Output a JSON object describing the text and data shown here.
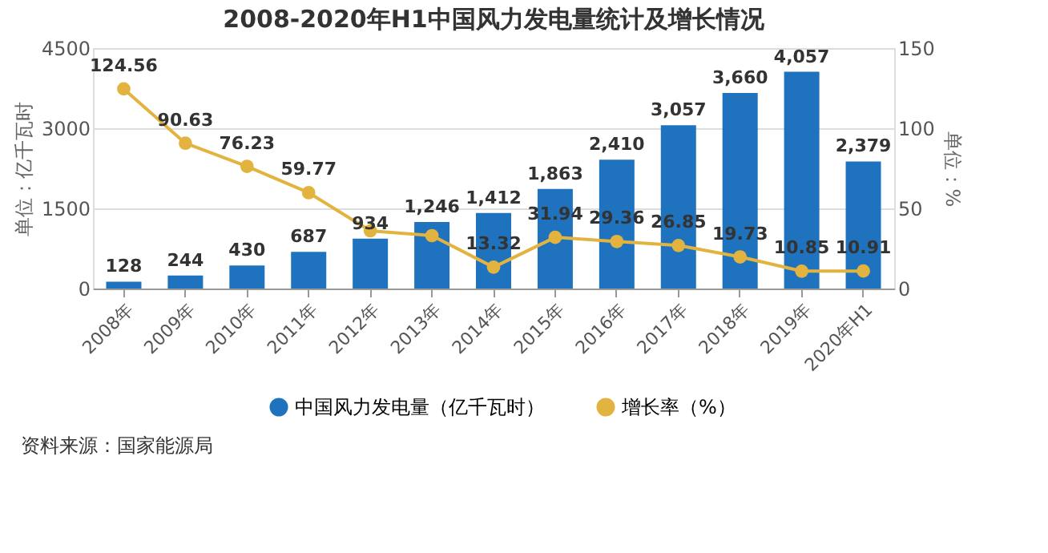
{
  "chart_data": {
    "type": "bar",
    "title": "2008-2020年H1中国风力发电量统计及增长情况",
    "categories": [
      "2008年",
      "2009年",
      "2010年",
      "2011年",
      "2012年",
      "2013年",
      "2014年",
      "2015年",
      "2016年",
      "2017年",
      "2018年",
      "2019年",
      "2020年H1"
    ],
    "series": [
      {
        "name": "中国风力发电量（亿千瓦时）",
        "color": "#1f73be",
        "values": [
          128,
          244,
          430,
          687,
          934,
          1246,
          1412,
          1863,
          2410,
          3057,
          3660,
          4057,
          2379
        ],
        "value_labels": [
          "128",
          "244",
          "430",
          "687",
          "934",
          "1,246",
          "1,412",
          "1,863",
          "2,410",
          "3,057",
          "3,660",
          "4,057",
          "2,379"
        ]
      },
      {
        "name": "增长率（%）",
        "type": "line",
        "axis": "y2",
        "color": "#e3b340",
        "marker": "circle",
        "values": [
          124.56,
          90.63,
          76.23,
          59.77,
          36,
          33,
          13.32,
          31.94,
          29.36,
          26.85,
          19.73,
          10.85,
          10.91
        ],
        "value_labels": [
          "124.56",
          "90.63",
          "76.23",
          "59.77",
          null,
          null,
          "13.32",
          "31.94",
          "29.36",
          "26.85",
          "19.73",
          "10.85",
          "10.91"
        ]
      }
    ],
    "ylabel": "单位：亿千瓦时",
    "y2label": "单位：%",
    "ylim": [
      0,
      4500
    ],
    "yticks": [
      0,
      1500,
      3000,
      4500
    ],
    "y2lim": [
      0,
      150
    ],
    "y2ticks": [
      0,
      50,
      100,
      150
    ],
    "grid": "y",
    "legend": "bottom",
    "annotations": [
      "资料来源：国家能源局"
    ]
  }
}
